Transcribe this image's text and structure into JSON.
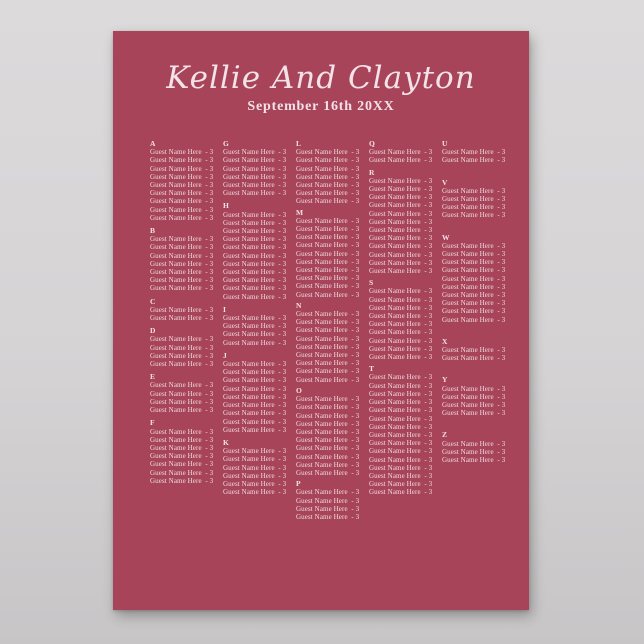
{
  "backdrop": {
    "background_top": "#dcdadb",
    "background_bottom": "#c7c5c6"
  },
  "poster": {
    "background": "#a84459",
    "text_color": "#f3e2e8",
    "title": "Kellie And Clayton",
    "subtitle": "September 16th 20XX"
  },
  "seating_chart": {
    "entry_label": "Guest Name Here",
    "entry_count": "3",
    "entry_text": "Guest Name Here  - 3",
    "columns": [
      {
        "sections": [
          {
            "letter": "A",
            "entries": 9
          },
          {
            "letter": "B",
            "entries": 7
          },
          {
            "letter": "C",
            "entries": 2
          },
          {
            "letter": "D",
            "entries": 4
          },
          {
            "letter": "E",
            "entries": 4
          },
          {
            "letter": "F",
            "entries": 7
          }
        ]
      },
      {
        "sections": [
          {
            "letter": "G",
            "entries": 6
          },
          {
            "letter": "H",
            "entries": 11
          },
          {
            "letter": "I",
            "entries": 4
          },
          {
            "letter": "J",
            "entries": 9
          },
          {
            "letter": "K",
            "entries": 6
          }
        ]
      },
      {
        "sections": [
          {
            "letter": "L",
            "entries": 7
          },
          {
            "letter": "M",
            "entries": 10
          },
          {
            "letter": "N",
            "entries": 9
          },
          {
            "letter": "O",
            "entries": 10
          },
          {
            "letter": "P",
            "entries": 4
          }
        ]
      },
      {
        "sections": [
          {
            "letter": "Q",
            "entries": 2
          },
          {
            "letter": "R",
            "entries": 12
          },
          {
            "letter": "S",
            "entries": 9
          },
          {
            "letter": "T",
            "entries": 15
          }
        ]
      },
      {
        "sections": [
          {
            "letter": "U",
            "entries": 2
          },
          {
            "letter": "V",
            "entries": 4
          },
          {
            "letter": "W",
            "entries": 10
          },
          {
            "letter": "X",
            "entries": 2
          },
          {
            "letter": "Y",
            "entries": 4
          },
          {
            "letter": "Z",
            "entries": 3
          }
        ]
      }
    ]
  }
}
